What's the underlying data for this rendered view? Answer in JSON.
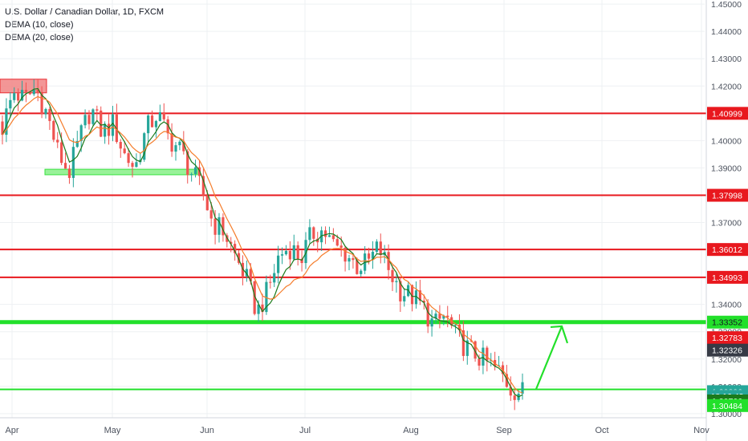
{
  "legend": {
    "title": "U.S. Dollar / Canadian Dollar, 1D, FXCM",
    "ind1": "DEMA (10, close)",
    "ind2": "DEMA (20, close)"
  },
  "colors": {
    "up": "#26a69a",
    "down": "#ef5350",
    "dema10": "#1b7a1b",
    "dema20": "#f57c2a",
    "resistance": "#e8181e",
    "support": "#22e02a",
    "grid": "#eef0f3",
    "axis_text": "#4c525e"
  },
  "chart_data": {
    "type": "candlestick",
    "title": "U.S. Dollar / Canadian Dollar, 1D, FXCM",
    "ylim": [
      1.2985,
      1.4515
    ],
    "x_ticks": [
      "Apr",
      "May",
      "Jun",
      "Jul",
      "Aug",
      "Sep",
      "Oct",
      "Nov"
    ],
    "y_ticks": [
      "1.45000",
      "1.44000",
      "1.43000",
      "1.42000",
      "1.41000",
      "1.40000",
      "1.39000",
      "1.38000",
      "1.37000",
      "1.36000",
      "1.35000",
      "1.34000",
      "1.33000",
      "1.32000",
      "1.31000",
      "1.30000"
    ],
    "close_path": [
      1.405,
      1.418,
      1.415,
      1.419,
      1.41,
      1.396,
      1.388,
      1.401,
      1.412,
      1.403,
      1.406,
      1.395,
      1.39,
      1.404,
      1.41,
      1.401,
      1.397,
      1.389,
      1.382,
      1.37,
      1.367,
      1.358,
      1.35,
      1.337,
      1.345,
      1.358,
      1.361,
      1.357,
      1.366,
      1.367,
      1.361,
      1.359,
      1.354,
      1.355,
      1.361,
      1.352,
      1.345,
      1.343,
      1.339,
      1.332,
      1.336,
      1.328,
      1.324,
      1.321,
      1.318,
      1.315,
      1.309,
      1.308
    ],
    "levels": [
      {
        "type": "resistance",
        "price": 1.40999,
        "label": "1.40999"
      },
      {
        "type": "resistance",
        "price": 1.37998,
        "label": "1.37998"
      },
      {
        "type": "resistance",
        "price": 1.36012,
        "label": "1.36012"
      },
      {
        "type": "resistance",
        "price": 1.34993,
        "label": "1.34993"
      },
      {
        "type": "support",
        "price": 1.33352,
        "label": "1.33352"
      },
      {
        "type": "support",
        "price": 1.3089,
        "label": ""
      }
    ],
    "price_labels": [
      {
        "label": "1.32783",
        "price": 1.32783,
        "color": "#e8181e"
      },
      {
        "label": "1.32326",
        "price": 1.32326,
        "color": "#363a45"
      },
      {
        "label": "1.30806",
        "price": 1.30806,
        "color": "#26a69a"
      },
      {
        "label": "18:16:43",
        "price": 1.30636,
        "color": "#26a69a"
      },
      {
        "label": "1.30766",
        "price": 1.30466,
        "color": "#1b7a1b"
      },
      {
        "label": "1.30484",
        "price": 1.30296,
        "color": "#22e02a"
      }
    ],
    "zones": [
      {
        "type": "resistance",
        "from": 1.4175,
        "to": 1.4225
      },
      {
        "type": "support",
        "from": 1.3875,
        "to": 1.3895
      }
    ],
    "arrow": {
      "from_price": 1.309,
      "to_price": 1.332
    }
  }
}
